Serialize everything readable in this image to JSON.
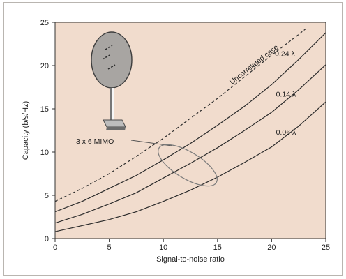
{
  "chart_data": {
    "type": "line",
    "xlabel": "Signal-to-noise ratio",
    "ylabel": "Capacity (b/s/Hz)",
    "xlim": [
      0,
      25
    ],
    "ylim": [
      0,
      25
    ],
    "xticks": [
      0,
      5,
      10,
      15,
      20,
      25
    ],
    "yticks": [
      0,
      5,
      10,
      15,
      20,
      25
    ],
    "grid": false,
    "background_color": "#f1dccd",
    "line_color": "#2b2b2b",
    "series": [
      {
        "name": "Uncorrelated case",
        "style": "dashed",
        "x": [
          0,
          2.5,
          5,
          7.5,
          10,
          12.5,
          15,
          17.5,
          20,
          22.5,
          23.2
        ],
        "y": [
          4.3,
          5.8,
          7.5,
          9.5,
          11.6,
          13.9,
          16.2,
          18.7,
          21.2,
          23.6,
          24.3
        ]
      },
      {
        "name": "0.24 λ",
        "style": "solid",
        "x": [
          0,
          2.5,
          5,
          7.5,
          10,
          12.5,
          15,
          17.5,
          20,
          22.5,
          25
        ],
        "y": [
          3.1,
          4.3,
          5.8,
          7.3,
          9.1,
          11.0,
          13.1,
          15.3,
          17.8,
          20.7,
          23.8
        ]
      },
      {
        "name": "0.14 λ",
        "style": "solid",
        "x": [
          0,
          2.5,
          5,
          7.5,
          10,
          12.5,
          15,
          17.5,
          20,
          22.5,
          25
        ],
        "y": [
          1.8,
          2.8,
          4.0,
          5.3,
          7.0,
          8.7,
          10.5,
          12.5,
          14.6,
          17.2,
          20.1
        ]
      },
      {
        "name": "0.06 λ",
        "style": "solid",
        "x": [
          0,
          2.5,
          5,
          7.5,
          10,
          12.5,
          15,
          17.5,
          20,
          22.5,
          25
        ],
        "y": [
          0.8,
          1.5,
          2.2,
          3.1,
          4.3,
          5.6,
          7.1,
          8.8,
          10.6,
          13.0,
          15.8
        ]
      }
    ],
    "annotations": [
      {
        "text": "3 x 6 MIMO",
        "target_x": 11.7,
        "target_y": 8.2
      }
    ]
  }
}
